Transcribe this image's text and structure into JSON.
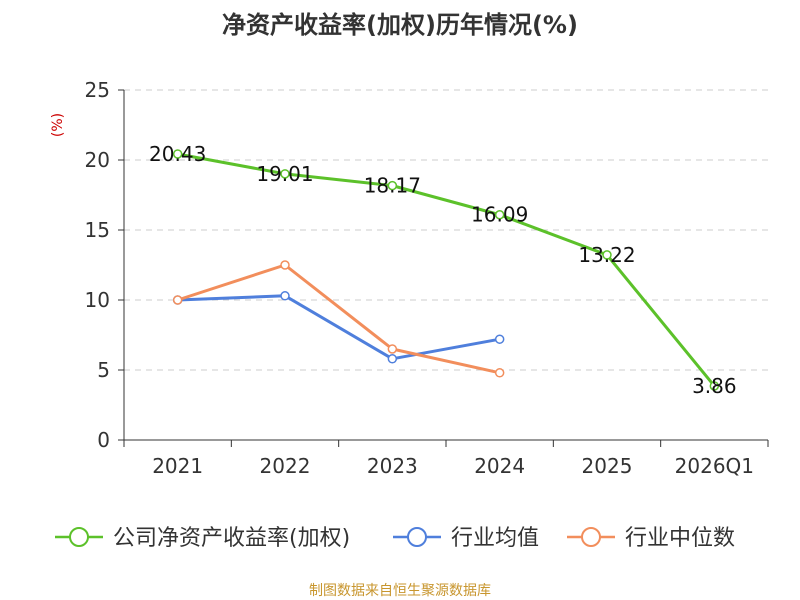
{
  "chart_data": {
    "type": "line",
    "title": "净资产收益率(加权)历年情况(%)",
    "ylabel": "(%)",
    "ylim": [
      0,
      25
    ],
    "yticks": [
      0,
      5,
      10,
      15,
      20,
      25
    ],
    "categories": [
      "2021",
      "2022",
      "2023",
      "2024",
      "2025",
      "2026Q1"
    ],
    "grid": true,
    "legend_position": "bottom",
    "series": [
      {
        "name": "公司净资产收益率(加权)",
        "color": "#5cc12a",
        "values": [
          20.43,
          19.01,
          18.17,
          16.09,
          13.22,
          3.86
        ],
        "labels": [
          "20.43",
          "19.01",
          "18.17",
          "16.09",
          "13.22",
          "3.86"
        ]
      },
      {
        "name": "行业均值",
        "color": "#4f7fdc",
        "values": [
          10.0,
          10.3,
          5.8,
          7.2,
          null,
          null
        ]
      },
      {
        "name": "行业中位数",
        "color": "#f28e5c",
        "values": [
          10.0,
          12.5,
          6.5,
          4.8,
          null,
          null
        ]
      }
    ],
    "source": "制图数据来自恒生聚源数据库"
  }
}
